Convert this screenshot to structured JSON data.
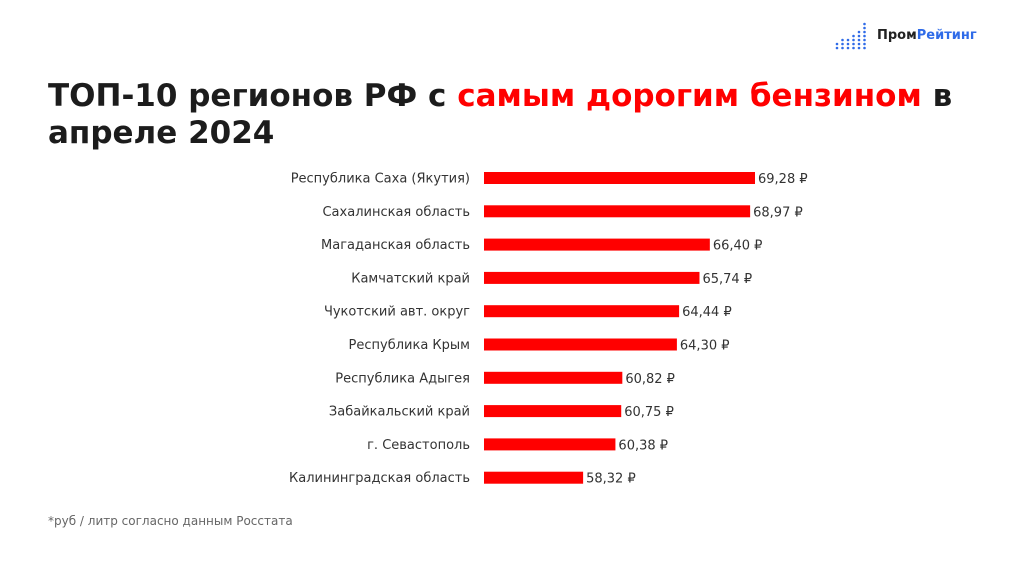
{
  "logo": {
    "part1": "Пром",
    "part2": "Рейтинг",
    "accent": "#2f6be8"
  },
  "title": {
    "part1": "ТОП-10 регионов РФ с ",
    "highlight": "самым дорогим бензином",
    "part2": " в апреле 2024"
  },
  "footnote": "*руб / литр согласно данным Росстата",
  "chart_data": {
    "type": "bar",
    "orientation": "horizontal",
    "title": "ТОП-10 регионов РФ с самым дорогим бензином в апреле 2024",
    "categories": [
      "Республика Саха (Якутия)",
      "Сахалинская область",
      "Магаданская область",
      "Камчатский край",
      "Чукотский авт. округ",
      "Республика Крым",
      "Республика Адыгея",
      "Забайкальский край",
      "г. Севастополь",
      "Калининградская область"
    ],
    "values": [
      69.28,
      68.97,
      66.4,
      65.74,
      64.44,
      64.3,
      60.82,
      60.75,
      60.38,
      58.32
    ],
    "labels": [
      "69,28 ₽",
      "68,97 ₽",
      "66,40 ₽",
      "65,74 ₽",
      "64,44 ₽",
      "64,30 ₽",
      "60,82 ₽",
      "60,75 ₽",
      "60,38 ₽",
      "58,32 ₽"
    ],
    "xlim": [
      52,
      75
    ],
    "unit": "руб / литр",
    "color": "#ff0000",
    "grid": false
  }
}
